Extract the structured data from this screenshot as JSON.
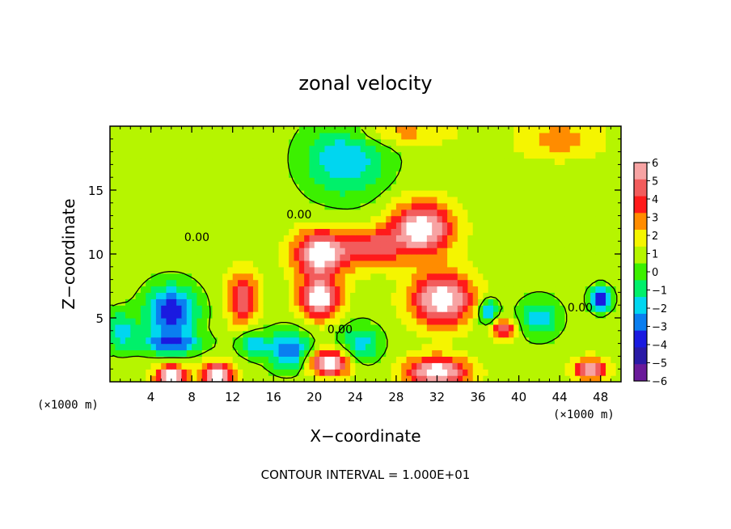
{
  "chart_data": {
    "type": "heatmap",
    "title": "zonal velocity",
    "xlabel": "X−coordinate",
    "ylabel": "Z−coordinate",
    "x_unit_label": "(×1000 m)",
    "z_unit_label": "(×1000 m)",
    "xlim": [
      0,
      50
    ],
    "ylim": [
      0,
      20
    ],
    "x_ticks": [
      4,
      8,
      12,
      16,
      20,
      24,
      28,
      32,
      36,
      40,
      44,
      48
    ],
    "y_ticks": [
      5,
      10,
      15
    ],
    "colorbar": {
      "levels": [
        6,
        5,
        4,
        3,
        2,
        1,
        0,
        -1,
        -2,
        -3,
        -4,
        -5,
        -6
      ],
      "labels": [
        "6",
        "5",
        "4",
        "3",
        "2",
        "1",
        "0",
        "−1",
        "−2",
        "−3",
        "−4",
        "−5",
        "−6"
      ],
      "colors": [
        "#f7a3a3",
        "#f25c5c",
        "#ff1a1a",
        "#ff8c00",
        "#f5f500",
        "#b6f500",
        "#3cf000",
        "#00f06a",
        "#00d6f0",
        "#0a7ef0",
        "#1a1ae0",
        "#2a1aa6",
        "#6a1a9a"
      ]
    },
    "contour_labels": [
      "0.00",
      "0.00",
      "0.00",
      "0.00"
    ],
    "footer": "CONTOUR INTERVAL = 1.000E+01",
    "fields": [
      {
        "x": 23,
        "z": 17.5,
        "value": -3.5,
        "sx": 4.0,
        "sz": 3.0
      },
      {
        "x": 6,
        "z": 5.5,
        "value": -5.5,
        "sx": 2.5,
        "sz": 2.0
      },
      {
        "x": 13,
        "z": 6.5,
        "value": 4.5,
        "sx": 1.5,
        "sz": 2.0
      },
      {
        "x": 20.5,
        "z": 10.0,
        "value": 6.5,
        "sx": 2.5,
        "sz": 1.8
      },
      {
        "x": 20.5,
        "z": 6.5,
        "value": 6.5,
        "sx": 2.0,
        "sz": 1.5
      },
      {
        "x": 30.5,
        "z": 12.0,
        "value": 6.5,
        "sx": 3.0,
        "sz": 2.0
      },
      {
        "x": 32.5,
        "z": 6.5,
        "value": 6.5,
        "sx": 3.0,
        "sz": 2.0
      },
      {
        "x": 25.5,
        "z": 10.5,
        "value": 4.0,
        "sx": 3.0,
        "sz": 1.5
      },
      {
        "x": 17.5,
        "z": 2.5,
        "value": -4.5,
        "sx": 2.0,
        "sz": 1.5
      },
      {
        "x": 24.5,
        "z": 3.0,
        "value": -3.0,
        "sx": 2.0,
        "sz": 1.5
      },
      {
        "x": 21.5,
        "z": 1.5,
        "value": 6.5,
        "sx": 2.0,
        "sz": 1.0
      },
      {
        "x": 32.0,
        "z": 0.8,
        "value": 6.5,
        "sx": 3.0,
        "sz": 1.2
      },
      {
        "x": 10.5,
        "z": 0.5,
        "value": 6.5,
        "sx": 1.5,
        "sz": 1.0
      },
      {
        "x": 6.0,
        "z": 0.5,
        "value": 6.5,
        "sx": 1.5,
        "sz": 0.8
      },
      {
        "x": 38.5,
        "z": 4.2,
        "value": 4.5,
        "sx": 1.2,
        "sz": 0.8
      },
      {
        "x": 42.0,
        "z": 5.0,
        "value": -3.0,
        "sx": 2.0,
        "sz": 1.5
      },
      {
        "x": 48.0,
        "z": 6.5,
        "value": -5.5,
        "sx": 1.0,
        "sz": 0.9
      },
      {
        "x": 47.0,
        "z": 1.0,
        "value": 6.0,
        "sx": 1.5,
        "sz": 0.8
      },
      {
        "x": 1.0,
        "z": 4.0,
        "value": -3.0,
        "sx": 1.5,
        "sz": 1.5
      },
      {
        "x": 6.0,
        "z": 3.0,
        "value": -4.0,
        "sx": 3.0,
        "sz": 0.8
      },
      {
        "x": 14.0,
        "z": 3.0,
        "value": -3.0,
        "sx": 1.5,
        "sz": 1.0
      },
      {
        "x": 37.0,
        "z": 5.5,
        "value": -4.0,
        "sx": 1.0,
        "sz": 1.0
      },
      {
        "x": 28.0,
        "z": 19.5,
        "value": 2.0,
        "sx": 5.0,
        "sz": 1.0
      },
      {
        "x": 44.0,
        "z": 19.0,
        "value": 2.0,
        "sx": 4.0,
        "sz": 1.5
      }
    ],
    "background_value": 0.5
  }
}
